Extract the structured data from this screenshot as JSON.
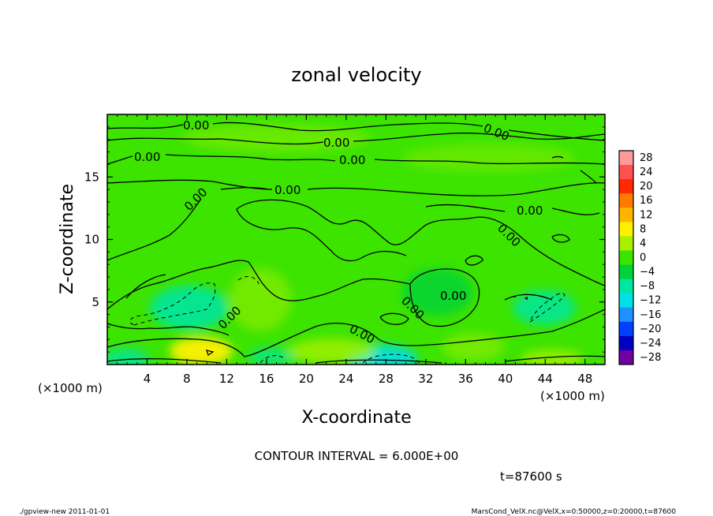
{
  "chart_data": {
    "type": "heatmap",
    "title": "zonal velocity",
    "xlabel": "X-coordinate",
    "ylabel": "Z-coordinate",
    "x_unit_label": "(×1000 m)",
    "y_unit_label": "(×1000 m)",
    "xlim": [
      0,
      50
    ],
    "ylim": [
      0,
      20
    ],
    "x_ticks": [
      4,
      8,
      12,
      16,
      20,
      24,
      28,
      32,
      36,
      40,
      44,
      48
    ],
    "y_ticks": [
      5,
      10,
      15
    ],
    "contour_label": "0.00",
    "contour_interval_text": "CONTOUR INTERVAL = 6.000E+00",
    "time_text": "t=87600 s",
    "colorbar": {
      "levels": [
        28,
        24,
        20,
        16,
        12,
        8,
        4,
        0,
        -4,
        -8,
        -12,
        -16,
        -20,
        -24,
        -28
      ],
      "colors": [
        "#ff9a9a",
        "#ff5050",
        "#ff2a00",
        "#ff7a00",
        "#ffb400",
        "#fff000",
        "#a8f000",
        "#3ce400",
        "#00d238",
        "#00e6a0",
        "#00e0e8",
        "#1e90ff",
        "#0040ff",
        "#0000c0",
        "#7000a0"
      ]
    }
  },
  "footer": {
    "left": "./gpview-new  2011-01-01",
    "right": "MarsCond_VelX.nc@VelX,x=0:50000,z=0:20000,t=87600"
  }
}
